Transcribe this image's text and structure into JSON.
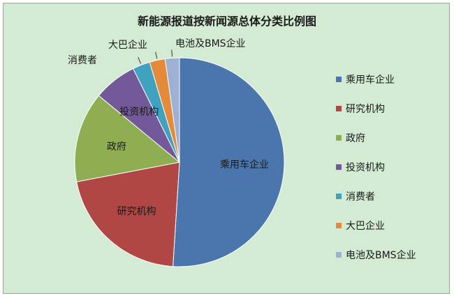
{
  "chart_data": {
    "type": "pie",
    "title": "新能源报道按新闻源总体分类比例图",
    "categories": [
      "乘用车企业",
      "研究机构",
      "政府",
      "投资机构",
      "消费者",
      "大巴企业",
      "电池及BMS企业"
    ],
    "values": [
      51.0,
      21.0,
      14.0,
      6.7,
      2.7,
      2.4,
      2.2
    ],
    "colors": [
      "#4a76ad",
      "#b14744",
      "#8fae52",
      "#73599a",
      "#3fa2bf",
      "#e58a3a",
      "#9db1d5"
    ],
    "legend_position": "right"
  }
}
